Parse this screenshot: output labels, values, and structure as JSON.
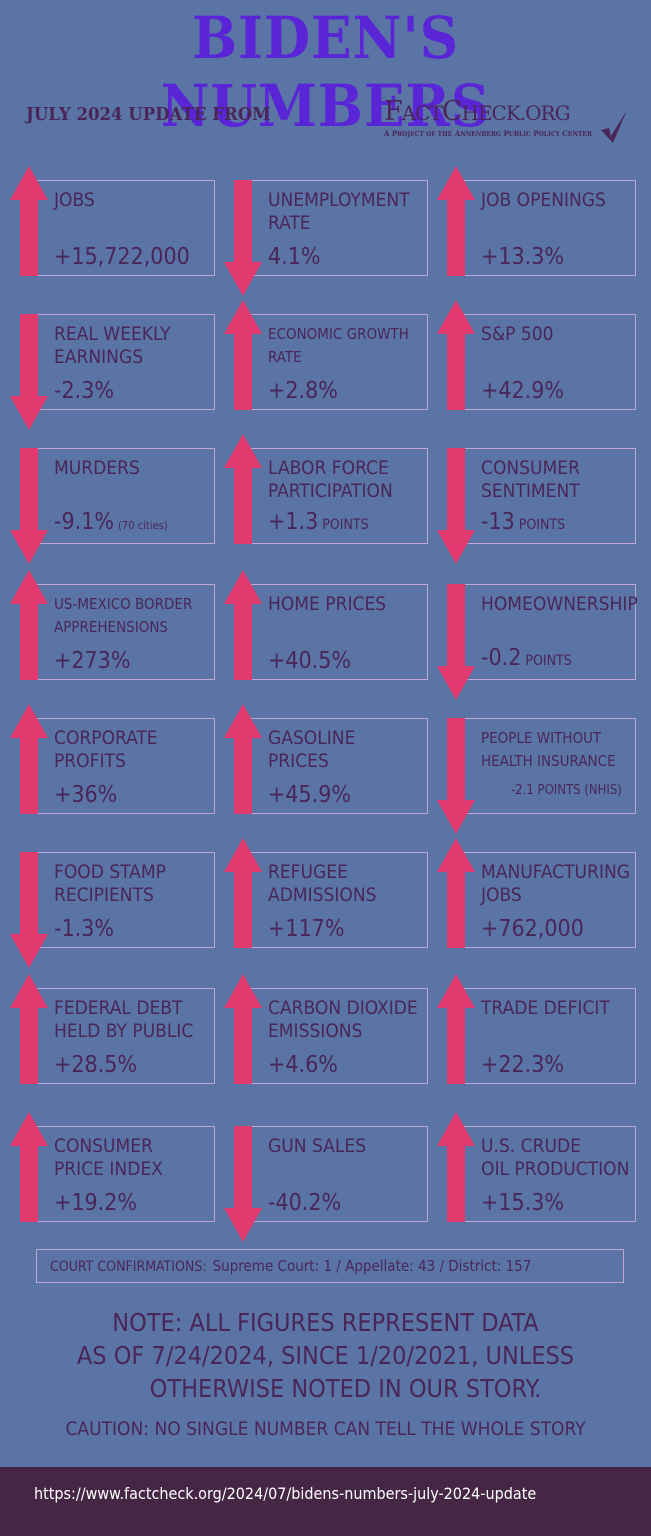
{
  "title": "BIDEN'S NUMBERS",
  "subtitle": "JULY 2024 UPDATE FROM",
  "logo": {
    "name": "FactCheck.org",
    "tagline": "A PROJECT OF THE ANNENBERG PUBLIC POLICY CENTER"
  },
  "colors": {
    "background": "#5a74a6",
    "title": "#5a25d6",
    "text": "#4a2658",
    "arrow": "#e23a6e",
    "footer": "#452644"
  },
  "metrics": [
    {
      "label": [
        "JOBS"
      ],
      "value": "+15,722,000",
      "direction": "up"
    },
    {
      "label": [
        "UNEMPLOYMENT",
        "RATE"
      ],
      "value": "4.1%",
      "direction": "down"
    },
    {
      "label": [
        "JOB OPENINGS"
      ],
      "value": "+13.3%",
      "direction": "up"
    },
    {
      "label": [
        "REAL WEEKLY",
        "EARNINGS"
      ],
      "value": "-2.3%",
      "direction": "down"
    },
    {
      "label": [
        "ECONOMIC GROWTH",
        "RATE"
      ],
      "value": "+2.8%",
      "direction": "up",
      "small": true
    },
    {
      "label": [
        "S&P 500"
      ],
      "value": "+42.9%",
      "direction": "up"
    },
    {
      "label": [
        "MURDERS"
      ],
      "value": "-9.1%",
      "unit": "(70 cities)",
      "direction": "down"
    },
    {
      "label": [
        "LABOR FORCE",
        "PARTICIPATION"
      ],
      "value": "+1.3",
      "unit": "POINTS",
      "direction": "up"
    },
    {
      "label": [
        "CONSUMER",
        "SENTIMENT"
      ],
      "value": "-13",
      "unit": "POINTS",
      "direction": "down"
    },
    {
      "label": [
        "US-MEXICO BORDER",
        "APPREHENSIONS"
      ],
      "value": "+273%",
      "direction": "up",
      "small": true
    },
    {
      "label": [
        "HOME PRICES"
      ],
      "value": "+40.5%",
      "direction": "up"
    },
    {
      "label": [
        "HOMEOWNERSHIP"
      ],
      "value": "-0.2",
      "unit": "POINTS",
      "direction": "down"
    },
    {
      "label": [
        "CORPORATE",
        "PROFITS"
      ],
      "value": "+36%",
      "direction": "up"
    },
    {
      "label": [
        "GASOLINE",
        "PRICES"
      ],
      "value": "+45.9%",
      "direction": "up"
    },
    {
      "label": [
        "PEOPLE WITHOUT",
        "HEALTH INSURANCE"
      ],
      "value": "-2.1 POINTS (NHIS)",
      "direction": "down",
      "small": true
    },
    {
      "label": [
        "FOOD STAMP",
        "RECIPIENTS"
      ],
      "value": "-1.3%",
      "direction": "down"
    },
    {
      "label": [
        "REFUGEE",
        "ADMISSIONS"
      ],
      "value": "+117%",
      "direction": "up"
    },
    {
      "label": [
        "MANUFACTURING",
        "JOBS"
      ],
      "value": "+762,000",
      "direction": "up"
    },
    {
      "label": [
        "FEDERAL DEBT",
        "HELD BY PUBLIC"
      ],
      "value": "+28.5%",
      "direction": "up"
    },
    {
      "label": [
        "CARBON DIOXIDE",
        "EMISSIONS"
      ],
      "value": "+4.6%",
      "direction": "up"
    },
    {
      "label": [
        "TRADE DEFICIT"
      ],
      "value": "+22.3%",
      "direction": "up"
    },
    {
      "label": [
        "CONSUMER",
        "PRICE INDEX"
      ],
      "value": "+19.2%",
      "direction": "up"
    },
    {
      "label": [
        "GUN SALES"
      ],
      "value": "-40.2%",
      "direction": "down"
    },
    {
      "label": [
        "U.S. CRUDE",
        "OIL PRODUCTION"
      ],
      "value": "+15.3%",
      "direction": "up"
    }
  ],
  "court": {
    "label": "COURT CONFIRMATIONS:",
    "value": "Supreme Court: 1 / Appellate: 43 / District: 157"
  },
  "note": [
    "NOTE:  ALL FIGURES REPRESENT DATA",
    "AS OF 7/24/2024, SINCE 1/20/2021, UNLESS",
    "OTHERWISE NOTED IN OUR STORY."
  ],
  "caution": "CAUTION: NO SINGLE NUMBER CAN TELL THE WHOLE STORY",
  "footer_url": "https://www.factcheck.org/2024/07/bidens-numbers-july-2024-update"
}
